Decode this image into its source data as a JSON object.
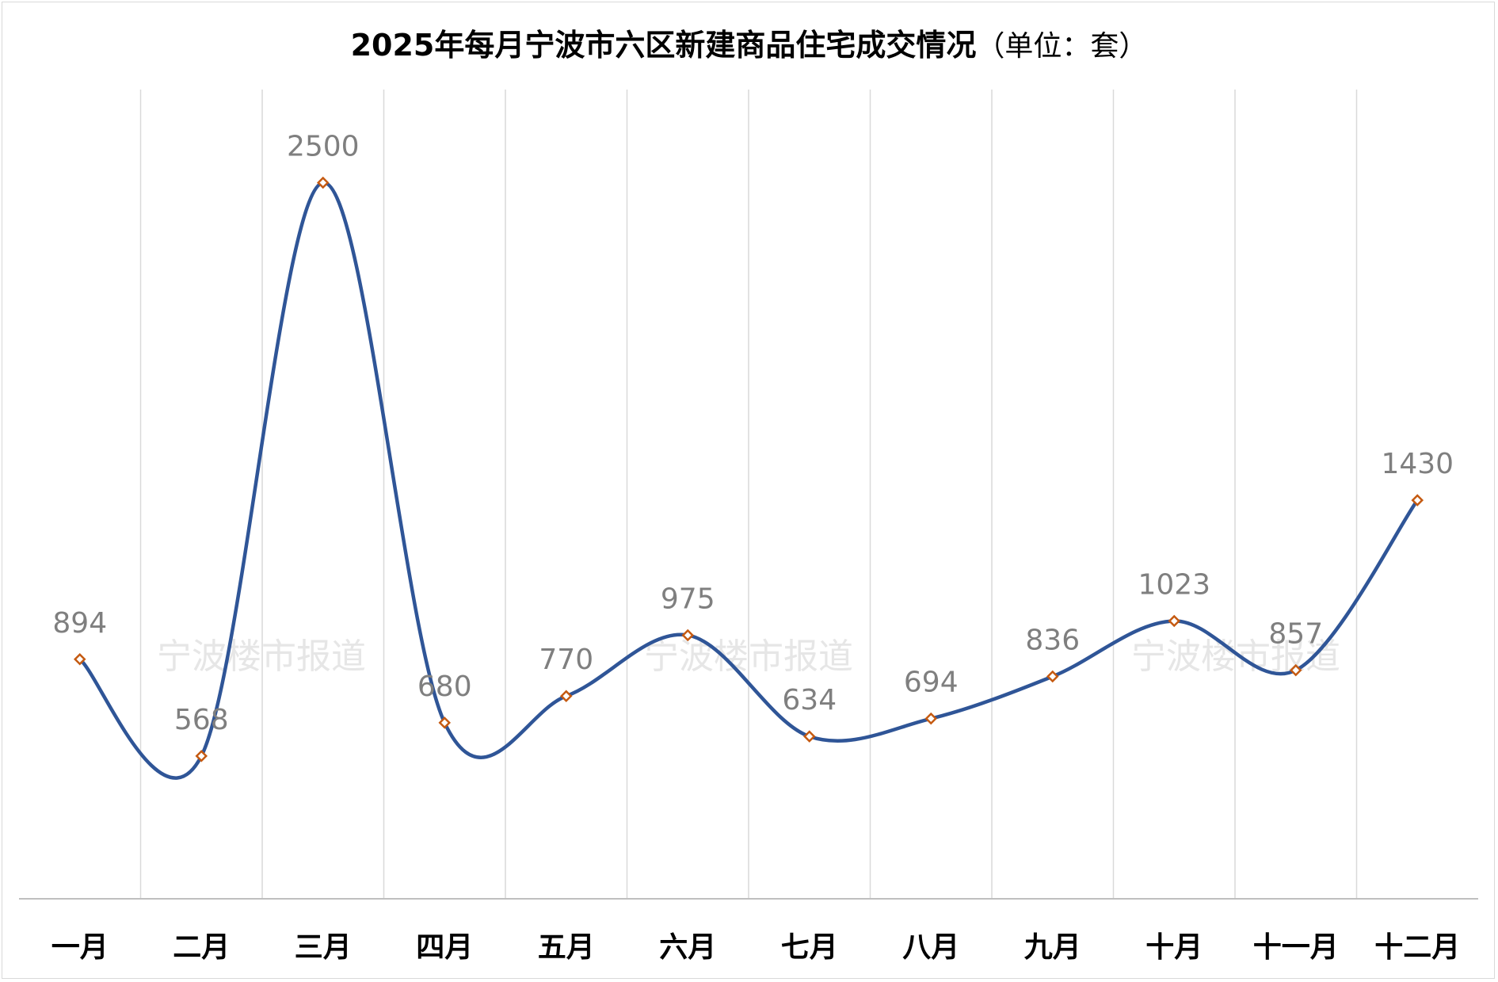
{
  "chart_data": {
    "type": "line",
    "title": "2025年每月宁波市六区新建商品住宅成交情况",
    "subtitle": "（单位：套）",
    "categories": [
      "一月",
      "二月",
      "三月",
      "四月",
      "五月",
      "六月",
      "七月",
      "八月",
      "九月",
      "十月",
      "十一月",
      "十二月"
    ],
    "series": [
      {
        "values": [
          894,
          568,
          2500,
          680,
          770,
          975,
          634,
          694,
          836,
          1023,
          857,
          1430
        ]
      }
    ],
    "ylim": [
      0,
      3000
    ],
    "grid": "vertical",
    "smooth": true,
    "colors": {
      "line": "#2f5597",
      "marker": "#c55a11"
    },
    "watermark": "宁波楼市报道"
  }
}
